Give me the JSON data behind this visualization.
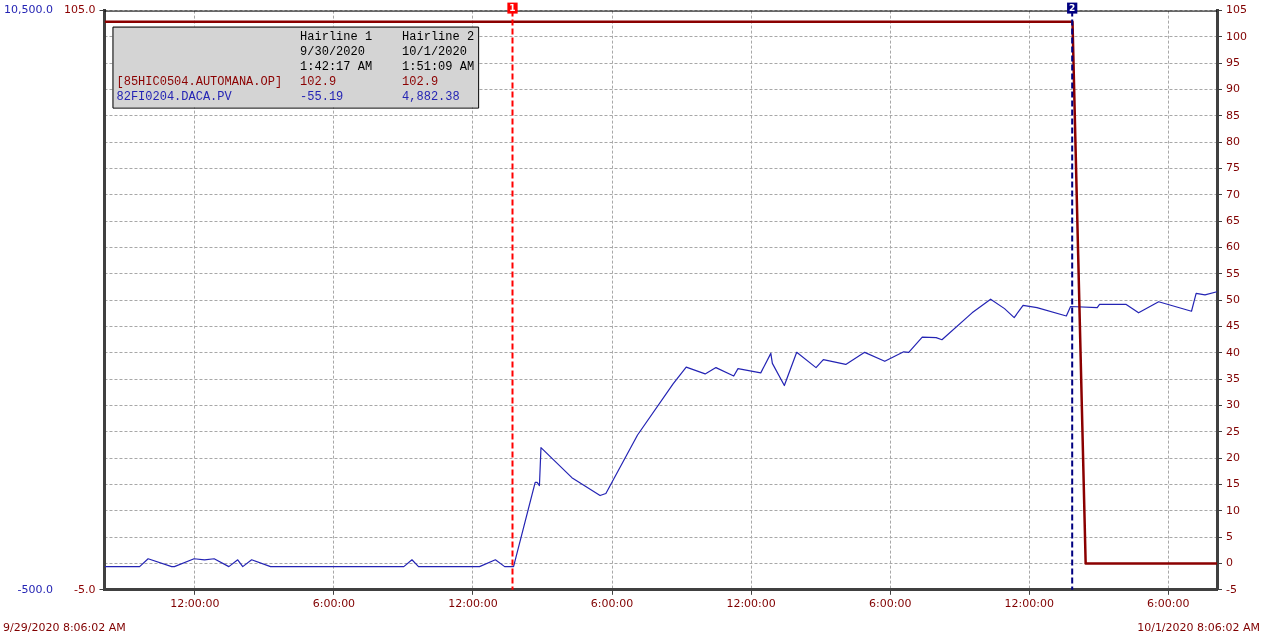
{
  "chart_data": {
    "type": "line",
    "xlim": [
      "2020-09-29T08:06:02",
      "2020-10-01T08:06:02"
    ],
    "xticks": [
      {
        "value": "2020-09-29T12:00",
        "label": "12:00:00"
      },
      {
        "value": "2020-09-29T18:00",
        "label": "6:00:00"
      },
      {
        "value": "2020-09-30T00:00",
        "label": "12:00:00"
      },
      {
        "value": "2020-09-30T06:00",
        "label": "6:00:00"
      },
      {
        "value": "2020-09-30T12:00",
        "label": "12:00:00"
      },
      {
        "value": "2020-09-30T18:00",
        "label": "6:00:00"
      },
      {
        "value": "2020-10-01T00:00",
        "label": "12:00:00"
      },
      {
        "value": "2020-10-01T06:00",
        "label": "6:00:00"
      }
    ],
    "ylim": [
      -5,
      105
    ],
    "yticks": [
      {
        "value": -5,
        "label": "-5.0"
      },
      {
        "value": 105,
        "label": "105.0"
      }
    ],
    "y2lim": [
      -5,
      105
    ],
    "y2ticks": [
      -5,
      0,
      5,
      10,
      15,
      20,
      25,
      30,
      35,
      40,
      45,
      50,
      55,
      60,
      65,
      70,
      75,
      80,
      85,
      90,
      95,
      100,
      105
    ],
    "y3lim": [
      -500,
      10500
    ],
    "y3ticks": [
      {
        "value": -500,
        "label": "-500.0"
      },
      {
        "value": 10500,
        "label": "10,500.0"
      }
    ],
    "series": [
      {
        "name": "[85HIC0504.AUTOMANA.OP]",
        "color": "#8b0000",
        "x": [
          "2020-09-29T08:07",
          "2020-10-01T01:52",
          "2020-10-01T02:26",
          "2020-10-01T08:06"
        ],
        "values": [
          102.9,
          102.9,
          0,
          0
        ]
      },
      {
        "name": "82FI0204.DACA.PV",
        "color": "#2424b4",
        "axis": "y3",
        "x": [
          "2020-09-29T08:07",
          "2020-09-29T09:37",
          "2020-09-29T09:59",
          "2020-09-29T11:00",
          "2020-09-29T11:07",
          "2020-09-29T11:58",
          "2020-09-29T12:25",
          "2020-09-29T12:50",
          "2020-09-29T13:28",
          "2020-09-29T13:51",
          "2020-09-29T14:04",
          "2020-09-29T14:27",
          "2020-09-29T15:16",
          "2020-09-29T21:01",
          "2020-09-29T21:22",
          "2020-09-29T21:39",
          "2020-09-30T00:17",
          "2020-09-30T00:58",
          "2020-09-30T01:22",
          "2020-09-30T01:45",
          "2020-09-30T02:41",
          "2020-09-30T02:46",
          "2020-09-30T02:52",
          "2020-09-30T02:56",
          "2020-09-30T04:16",
          "2020-09-30T05:29",
          "2020-09-30T05:44",
          "2020-09-30T07:06",
          "2020-09-30T08:38",
          "2020-09-30T09:12",
          "2020-09-30T10:01",
          "2020-09-30T10:29",
          "2020-09-30T11:15",
          "2020-09-30T11:26",
          "2020-09-30T12:25",
          "2020-09-30T12:51",
          "2020-09-30T12:55",
          "2020-09-30T13:26",
          "2020-09-30T13:58",
          "2020-09-30T14:48",
          "2020-09-30T15:07",
          "2020-09-30T16:05",
          "2020-09-30T16:54",
          "2020-09-30T17:46",
          "2020-09-30T18:35",
          "2020-09-30T18:48",
          "2020-09-30T19:23",
          "2020-09-30T19:59",
          "2020-09-30T20:14",
          "2020-09-30T21:32",
          "2020-09-30T22:20",
          "2020-09-30T22:56",
          "2020-09-30T23:21",
          "2020-09-30T23:44",
          "2020-10-01T00:20",
          "2020-10-01T01:36",
          "2020-10-01T01:47",
          "2020-10-01T02:56",
          "2020-10-01T03:02",
          "2020-10-01T04:11",
          "2020-10-01T04:43",
          "2020-10-01T05:35",
          "2020-10-01T07:00",
          "2020-10-01T07:12",
          "2020-10-01T07:35",
          "2020-10-01T08:06"
        ],
        "values": [
          -60,
          -60,
          90,
          -60,
          -60,
          90,
          70,
          90,
          -60,
          70,
          -60,
          70,
          -60,
          -60,
          70,
          -60,
          -60,
          70,
          -60,
          -60,
          1540,
          1540,
          1480,
          2200,
          1630,
          1290,
          1330,
          2440,
          3410,
          3730,
          3600,
          3720,
          3560,
          3700,
          3620,
          3990,
          3800,
          3380,
          4010,
          3720,
          3870,
          3780,
          4010,
          3840,
          4020,
          4010,
          4300,
          4290,
          4250,
          4760,
          5020,
          4840,
          4670,
          4900,
          4860,
          4700,
          4880,
          4860,
          4920,
          4920,
          4760,
          4970,
          4790,
          5130,
          5100,
          5160
        ]
      }
    ],
    "ref_lines": [
      {
        "axis": "x",
        "value": "2020-09-30T01:42:17",
        "label": "1",
        "color": "#ff0000",
        "line_style": "dashed"
      },
      {
        "axis": "x",
        "value": "2020-10-01T01:51:09",
        "label": "2",
        "color": "#000080",
        "line_style": "dashed"
      }
    ],
    "annotations": [
      "Hairline 1",
      "Hairline 2",
      "9/30/2020",
      "10/1/2020",
      "1:42:17 AM",
      "1:51:09 AM",
      "102.9",
      "102.9",
      "-55.19",
      "4,882.38",
      "9/29/2020 8:06:02 AM",
      "10/1/2020 8:06:02 AM"
    ],
    "grid": true,
    "legend": "top left"
  }
}
